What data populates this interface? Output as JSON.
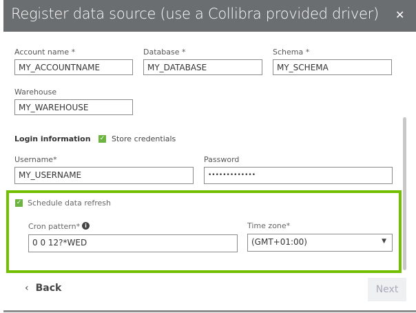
{
  "dialog": {
    "title": "Register data source (use a Collibra provided driver)",
    "close_icon": "close-icon"
  },
  "fields": {
    "account_label": "Account name *",
    "account_value": "MY_ACCOUNTNAME",
    "database_label": "Database *",
    "database_value": "MY_DATABASE",
    "schema_label": "Schema *",
    "schema_value": "MY_SCHEMA",
    "warehouse_label": "Warehouse",
    "warehouse_value": "MY_WAREHOUSE"
  },
  "login": {
    "heading": "Login information",
    "store_credentials": "Store credentials",
    "store_checked": true,
    "username_label": "Username*",
    "username_value": "MY_USERNAME",
    "password_label": "Password",
    "password_value": "•••••••••••••"
  },
  "schedule": {
    "label": "Schedule data refresh",
    "checked": true,
    "cron_label": "Cron pattern*",
    "cron_value": "0 0 12?*WED",
    "timezone_label": "Time zone*",
    "timezone_value": "(GMT+01:00)"
  },
  "footer": {
    "back": "Back",
    "next": "Next"
  },
  "colors": {
    "header": "#6b6e71",
    "highlight": "#72bf00",
    "checkbox": "#6db33f"
  }
}
